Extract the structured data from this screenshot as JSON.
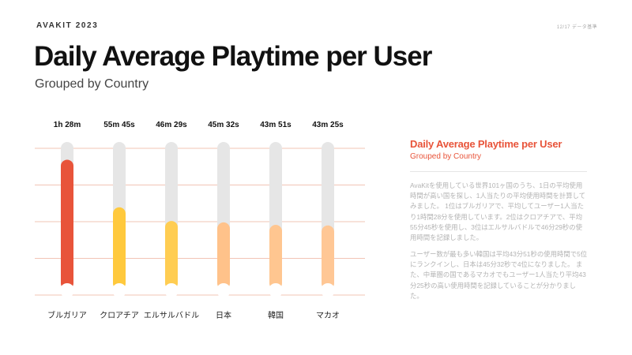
{
  "brand": "AVAKIT 2023",
  "page_meta": "12/17 データ基準",
  "title": "Daily Average Playtime per User",
  "subtitle": "Grouped by Country",
  "side": {
    "title": "Daily Average Playtime per User",
    "subtitle": "Grouped by Country",
    "p1": "AvaKitを使用している世界101ヶ国のうち、1日の平均使用時間が高い国を探し、1人当たりの平均使用時間を計算してみました。 1位はブルガリアで、平均してユーザー1人当たり1時間28分を使用しています。2位はクロアチアで、平均55分45秒を使用し、3位はエルサルバドルで46分29秒の使用時間を記録しました。",
    "p2": "ユーザー数が最も多い韓国は平均43分51秒の使用時間で5位にランクインし、日本は45分32秒で4位になりました。 また、中華圏の国であるマカオでもユーザー1人当たり平均43分25秒の高い使用時間を記録していることが分かりました。"
  },
  "colors": {
    "track": "#e6e6e6",
    "grid": "#f2c4b5",
    "cap": "#ffffff"
  },
  "chart_data": {
    "type": "bar",
    "title": "Daily Average Playtime per User",
    "subtitle": "Grouped by Country",
    "unit": "minutes",
    "categories": [
      "ブルガリア",
      "クロアチア",
      "エルサルバドル",
      "日本",
      "韓国",
      "マカオ"
    ],
    "values": [
      88,
      55.75,
      46.48,
      45.53,
      43.85,
      43.42
    ],
    "value_labels": [
      "1h 28m",
      "55m 45s",
      "46m 29s",
      "45m 32s",
      "43m 51s",
      "43m 25s"
    ],
    "bar_colors": [
      "#e8543a",
      "#ffc93d",
      "#ffcd52",
      "#ffc28a",
      "#ffc690",
      "#ffc795"
    ],
    "ylim": [
      0,
      100
    ],
    "grid": true,
    "xlabel": "",
    "ylabel": ""
  }
}
